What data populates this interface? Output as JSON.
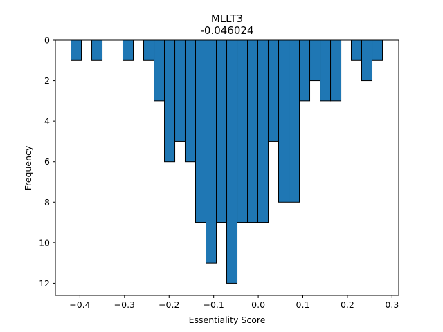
{
  "chart_data": {
    "type": "bar",
    "title": "MLLT3",
    "subtitle": "-0.046024",
    "xlabel": "Essentiality Score",
    "ylabel": "Frequency",
    "xlim": [
      -0.455,
      0.315
    ],
    "ylim": [
      12.6,
      0
    ],
    "y_inverted": true,
    "bar_width": 0.0233,
    "bar_color": "#1f77b4",
    "edge_color": "#000000",
    "x_ticks": [
      -0.4,
      -0.3,
      -0.2,
      -0.1,
      0.0,
      0.1,
      0.2,
      0.3
    ],
    "x_tick_labels": [
      "−0.4",
      "−0.3",
      "−0.2",
      "−0.1",
      "0.0",
      "0.1",
      "0.2",
      "0.3"
    ],
    "y_ticks": [
      0,
      2,
      4,
      6,
      8,
      10,
      12
    ],
    "y_tick_labels": [
      "0",
      "2",
      "4",
      "6",
      "8",
      "10",
      "12"
    ],
    "bins": [
      {
        "x": -0.4084,
        "count": 1
      },
      {
        "x": -0.3618,
        "count": 1
      },
      {
        "x": -0.292,
        "count": 1
      },
      {
        "x": -0.2454,
        "count": 1
      },
      {
        "x": -0.2221,
        "count": 3
      },
      {
        "x": -0.1988,
        "count": 6
      },
      {
        "x": -0.1755,
        "count": 5
      },
      {
        "x": -0.1523,
        "count": 6
      },
      {
        "x": -0.129,
        "count": 9
      },
      {
        "x": -0.1057,
        "count": 11
      },
      {
        "x": -0.0824,
        "count": 9
      },
      {
        "x": -0.0591,
        "count": 12
      },
      {
        "x": -0.0358,
        "count": 9
      },
      {
        "x": -0.0125,
        "count": 9
      },
      {
        "x": 0.0107,
        "count": 9
      },
      {
        "x": 0.034,
        "count": 5
      },
      {
        "x": 0.0573,
        "count": 8
      },
      {
        "x": 0.0806,
        "count": 8
      },
      {
        "x": 0.1039,
        "count": 3
      },
      {
        "x": 0.1272,
        "count": 2
      },
      {
        "x": 0.1505,
        "count": 3
      },
      {
        "x": 0.1738,
        "count": 3
      },
      {
        "x": 0.2203,
        "count": 1
      },
      {
        "x": 0.2436,
        "count": 2
      },
      {
        "x": 0.2669,
        "count": 1
      }
    ]
  }
}
